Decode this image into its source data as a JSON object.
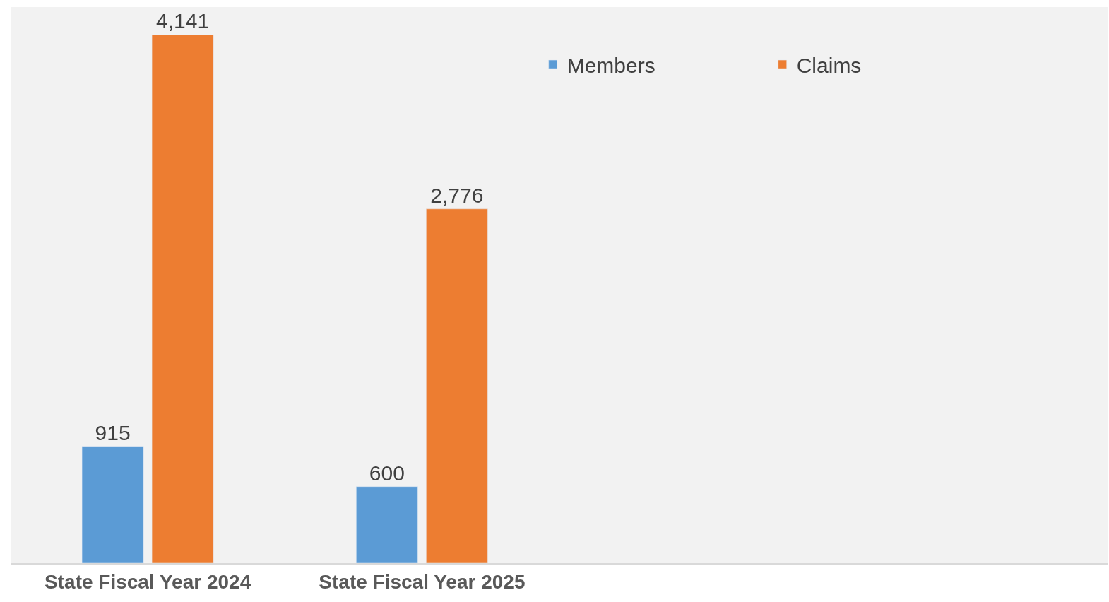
{
  "chart_data": {
    "type": "bar",
    "categories": [
      "State Fiscal Year 2024",
      "State Fiscal Year 2025",
      null,
      null
    ],
    "series": [
      {
        "name": "Members",
        "color": "#5b9bd5",
        "values": [
          915,
          600,
          null,
          null
        ],
        "value_labels": [
          "915",
          "600",
          null,
          null
        ]
      },
      {
        "name": "Claims",
        "color": "#ed7d31",
        "values": [
          4141,
          2776,
          null,
          null
        ],
        "value_labels": [
          "4,141",
          "2,776",
          null,
          null
        ]
      }
    ],
    "legend": "top right",
    "grid": false,
    "tick_labels": "x"
  }
}
